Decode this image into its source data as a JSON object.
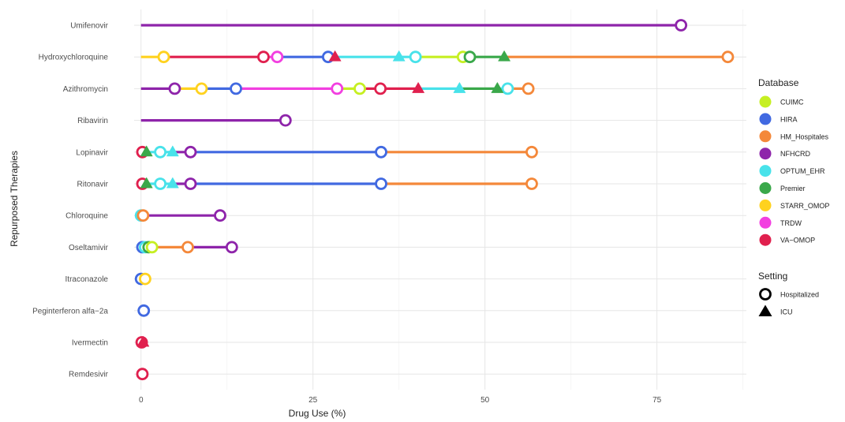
{
  "chart_data": {
    "type": "line",
    "xlabel": "Drug Use (%)",
    "ylabel": "Repurposed Therapies",
    "xlim": [
      -1,
      88
    ],
    "x_ticks": [
      0,
      25,
      50,
      75
    ],
    "grid": true,
    "categories": [
      "Umifenovir",
      "Hydroxychloroquine",
      "Azithromycin",
      "Ribavirin",
      "Lopinavir",
      "Ritonavir",
      "Chloroquine",
      "Oseltamivir",
      "Itraconazole",
      "Peginterferon alfa−2a",
      "Ivermectin",
      "Remdesivir"
    ],
    "legend": {
      "database_title": "Database",
      "databases": [
        {
          "name": "CUIMC",
          "color": "#c6ef22"
        },
        {
          "name": "HIRA",
          "color": "#4169e1"
        },
        {
          "name": "HM_Hospitales",
          "color": "#f4883a"
        },
        {
          "name": "NFHCRD",
          "color": "#8e24aa"
        },
        {
          "name": "OPTUM_EHR",
          "color": "#48e2ea"
        },
        {
          "name": "Premier",
          "color": "#3aa84a"
        },
        {
          "name": "STARR_OMOP",
          "color": "#ffd21f"
        },
        {
          "name": "TRDW",
          "color": "#f23fe0"
        },
        {
          "name": "VA−OMOP",
          "color": "#e0204e"
        }
      ],
      "setting_title": "Setting",
      "settings": [
        "Hospitalized",
        "ICU"
      ],
      "placement": "right"
    },
    "points": [
      {
        "therapy": "Umifenovir",
        "db": "NFHCRD",
        "setting": "Hospitalized",
        "x": 78.5
      },
      {
        "therapy": "Hydroxychloroquine",
        "db": "STARR_OMOP",
        "setting": "Hospitalized",
        "x": 3.3
      },
      {
        "therapy": "Hydroxychloroquine",
        "db": "VA−OMOP",
        "setting": "Hospitalized",
        "x": 17.8
      },
      {
        "therapy": "Hydroxychloroquine",
        "db": "TRDW",
        "setting": "Hospitalized",
        "x": 19.8
      },
      {
        "therapy": "Hydroxychloroquine",
        "db": "HIRA",
        "setting": "Hospitalized",
        "x": 27.2
      },
      {
        "therapy": "Hydroxychloroquine",
        "db": "VA−OMOP",
        "setting": "ICU",
        "x": 28.2
      },
      {
        "therapy": "Hydroxychloroquine",
        "db": "OPTUM_EHR",
        "setting": "ICU",
        "x": 37.5
      },
      {
        "therapy": "Hydroxychloroquine",
        "db": "OPTUM_EHR",
        "setting": "Hospitalized",
        "x": 39.9
      },
      {
        "therapy": "Hydroxychloroquine",
        "db": "CUIMC",
        "setting": "Hospitalized",
        "x": 46.8
      },
      {
        "therapy": "Hydroxychloroquine",
        "db": "Premier",
        "setting": "Hospitalized",
        "x": 47.8
      },
      {
        "therapy": "Hydroxychloroquine",
        "db": "Premier",
        "setting": "ICU",
        "x": 52.8
      },
      {
        "therapy": "Hydroxychloroquine",
        "db": "HM_Hospitales",
        "setting": "Hospitalized",
        "x": 85.3
      },
      {
        "therapy": "Azithromycin",
        "db": "NFHCRD",
        "setting": "Hospitalized",
        "x": 4.9
      },
      {
        "therapy": "Azithromycin",
        "db": "STARR_OMOP",
        "setting": "Hospitalized",
        "x": 8.8
      },
      {
        "therapy": "Azithromycin",
        "db": "HIRA",
        "setting": "Hospitalized",
        "x": 13.8
      },
      {
        "therapy": "Azithromycin",
        "db": "TRDW",
        "setting": "Hospitalized",
        "x": 28.5
      },
      {
        "therapy": "Azithromycin",
        "db": "CUIMC",
        "setting": "Hospitalized",
        "x": 31.8
      },
      {
        "therapy": "Azithromycin",
        "db": "VA−OMOP",
        "setting": "Hospitalized",
        "x": 34.8
      },
      {
        "therapy": "Azithromycin",
        "db": "VA−OMOP",
        "setting": "ICU",
        "x": 40.3
      },
      {
        "therapy": "Azithromycin",
        "db": "OPTUM_EHR",
        "setting": "ICU",
        "x": 46.3
      },
      {
        "therapy": "Azithromycin",
        "db": "Premier",
        "setting": "ICU",
        "x": 51.8
      },
      {
        "therapy": "Azithromycin",
        "db": "OPTUM_EHR",
        "setting": "Hospitalized",
        "x": 53.3
      },
      {
        "therapy": "Azithromycin",
        "db": "HM_Hospitales",
        "setting": "Hospitalized",
        "x": 56.3
      },
      {
        "therapy": "Ribavirin",
        "db": "NFHCRD",
        "setting": "Hospitalized",
        "x": 21.0
      },
      {
        "therapy": "Lopinavir",
        "db": "VA−OMOP",
        "setting": "Hospitalized",
        "x": 0.2
      },
      {
        "therapy": "Lopinavir",
        "db": "Premier",
        "setting": "ICU",
        "x": 0.8
      },
      {
        "therapy": "Lopinavir",
        "db": "OPTUM_EHR",
        "setting": "Hospitalized",
        "x": 2.8
      },
      {
        "therapy": "Lopinavir",
        "db": "OPTUM_EHR",
        "setting": "ICU",
        "x": 4.6
      },
      {
        "therapy": "Lopinavir",
        "db": "NFHCRD",
        "setting": "Hospitalized",
        "x": 7.2
      },
      {
        "therapy": "Lopinavir",
        "db": "HIRA",
        "setting": "Hospitalized",
        "x": 34.9
      },
      {
        "therapy": "Lopinavir",
        "db": "HM_Hospitales",
        "setting": "Hospitalized",
        "x": 56.8
      },
      {
        "therapy": "Ritonavir",
        "db": "VA−OMOP",
        "setting": "Hospitalized",
        "x": 0.2
      },
      {
        "therapy": "Ritonavir",
        "db": "Premier",
        "setting": "ICU",
        "x": 0.8
      },
      {
        "therapy": "Ritonavir",
        "db": "OPTUM_EHR",
        "setting": "Hospitalized",
        "x": 2.8
      },
      {
        "therapy": "Ritonavir",
        "db": "OPTUM_EHR",
        "setting": "ICU",
        "x": 4.6
      },
      {
        "therapy": "Ritonavir",
        "db": "NFHCRD",
        "setting": "Hospitalized",
        "x": 7.2
      },
      {
        "therapy": "Ritonavir",
        "db": "HIRA",
        "setting": "Hospitalized",
        "x": 34.9
      },
      {
        "therapy": "Ritonavir",
        "db": "HM_Hospitales",
        "setting": "Hospitalized",
        "x": 56.8
      },
      {
        "therapy": "Chloroquine",
        "db": "OPTUM_EHR",
        "setting": "Hospitalized",
        "x": 0.0
      },
      {
        "therapy": "Chloroquine",
        "db": "HM_Hospitales",
        "setting": "Hospitalized",
        "x": 0.3
      },
      {
        "therapy": "Chloroquine",
        "db": "NFHCRD",
        "setting": "Hospitalized",
        "x": 11.5
      },
      {
        "therapy": "Oseltamivir",
        "db": "HIRA",
        "setting": "Hospitalized",
        "x": 0.2
      },
      {
        "therapy": "Oseltamivir",
        "db": "OPTUM_EHR",
        "setting": "Hospitalized",
        "x": 0.6
      },
      {
        "therapy": "Oseltamivir",
        "db": "Premier",
        "setting": "Hospitalized",
        "x": 1.1
      },
      {
        "therapy": "Oseltamivir",
        "db": "CUIMC",
        "setting": "Hospitalized",
        "x": 1.6
      },
      {
        "therapy": "Oseltamivir",
        "db": "HM_Hospitales",
        "setting": "Hospitalized",
        "x": 6.8
      },
      {
        "therapy": "Oseltamivir",
        "db": "NFHCRD",
        "setting": "Hospitalized",
        "x": 13.2
      },
      {
        "therapy": "Itraconazole",
        "db": "HIRA",
        "setting": "Hospitalized",
        "x": 0.0
      },
      {
        "therapy": "Itraconazole",
        "db": "STARR_OMOP",
        "setting": "Hospitalized",
        "x": 0.6
      },
      {
        "therapy": "Peginterferon alfa−2a",
        "db": "HIRA",
        "setting": "Hospitalized",
        "x": 0.4
      },
      {
        "therapy": "Ivermectin",
        "db": "VA−OMOP",
        "setting": "Hospitalized",
        "x": 0.1
      },
      {
        "therapy": "Ivermectin",
        "db": "VA−OMOP",
        "setting": "ICU",
        "x": 0.3
      },
      {
        "therapy": "Remdesivir",
        "db": "VA−OMOP",
        "setting": "Hospitalized",
        "x": 0.2
      }
    ]
  }
}
